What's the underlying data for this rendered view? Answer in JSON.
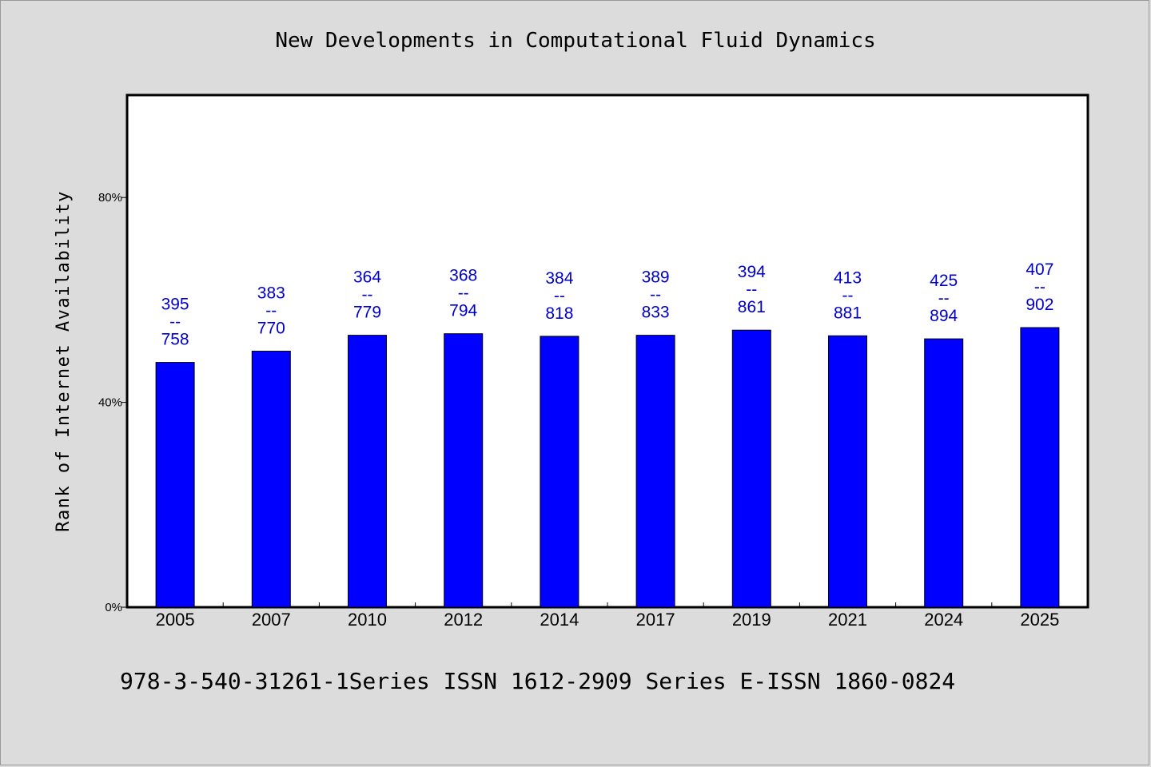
{
  "chart_data": {
    "type": "bar",
    "title": "New Developments in Computational Fluid Dynamics",
    "xlabel": "",
    "ylabel": "Rank of Internet Availability",
    "categories": [
      "2005",
      "2007",
      "2010",
      "2012",
      "2014",
      "2017",
      "2019",
      "2021",
      "2024",
      "2025"
    ],
    "values": [
      47.8,
      50.0,
      53.1,
      53.4,
      52.9,
      53.1,
      54.1,
      53.0,
      52.4,
      54.6
    ],
    "data_labels": [
      "395\n--\n758",
      "383\n--\n770",
      "364\n--\n779",
      "368\n--\n794",
      "384\n--\n818",
      "389\n--\n833",
      "394\n--\n861",
      "413\n--\n881",
      "425\n--\n894",
      "407\n--\n902"
    ],
    "yticks": [
      0,
      40,
      80
    ],
    "ytick_labels": [
      "0%",
      "40%",
      "80%"
    ],
    "ylim": [
      0,
      100
    ],
    "bar_color": "#0000ff",
    "label_color": "#0000cc",
    "grid": false,
    "legend": "none"
  },
  "footer": {
    "note": "978-3-540-31261-1Series ISSN 1612-2909 Series E-ISSN 1860-0824"
  },
  "colors": {
    "background": "#dcdcdc",
    "plot_background": "#ffffff"
  }
}
